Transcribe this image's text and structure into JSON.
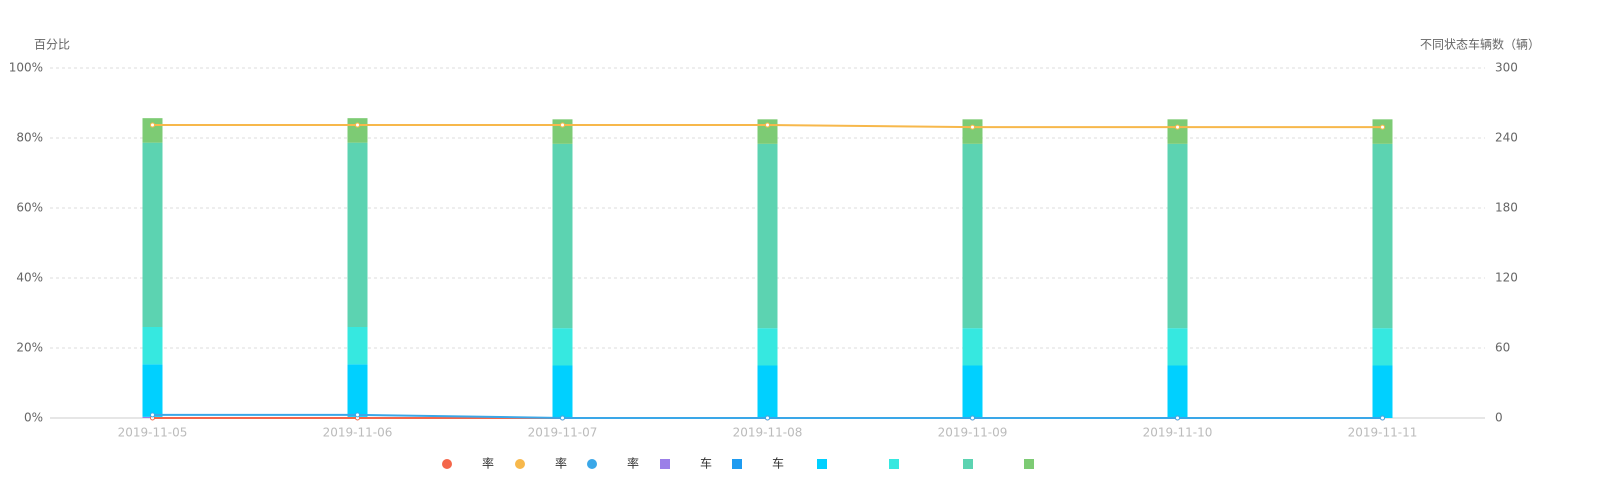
{
  "chart_data": {
    "type": "bar-line",
    "y_axis_title": "百分比",
    "y2_axis_title": "不同状态车辆数（辆）",
    "categories": [
      "2019-11-05",
      "2019-11-06",
      "2019-11-07",
      "2019-11-08",
      "2019-11-09",
      "2019-11-10",
      "2019-11-11"
    ],
    "ylim": [
      0,
      100
    ],
    "yticks": [
      {
        "value": 0,
        "label": "0%"
      },
      {
        "value": 20,
        "label": "20%"
      },
      {
        "value": 40,
        "label": "40%"
      },
      {
        "value": 60,
        "label": "60%"
      },
      {
        "value": 80,
        "label": "80%"
      },
      {
        "value": 100,
        "label": "100%"
      }
    ],
    "y2lim": [
      0,
      300
    ],
    "y2ticks": [
      0,
      60,
      120,
      180,
      240,
      300
    ],
    "grid": true,
    "series": [
      {
        "name": "率",
        "type": "line",
        "axis": "y",
        "color": "#f4664a",
        "values": [
          0,
          0,
          0,
          0,
          0,
          0,
          0
        ]
      },
      {
        "name": "率",
        "type": "line",
        "axis": "y",
        "color": "#f7b84b",
        "values": [
          83.7,
          83.7,
          83.7,
          83.7,
          83.1,
          83.1,
          83.1
        ]
      },
      {
        "name": "率",
        "type": "line",
        "axis": "y",
        "color": "#3aa7e8",
        "values": [
          0.9,
          0.9,
          0,
          0,
          0,
          0,
          0
        ]
      },
      {
        "name": "车",
        "type": "bar",
        "axis": "y2",
        "color": "#9b7fe8",
        "values": [
          1,
          1,
          0,
          0,
          0,
          0,
          0
        ]
      },
      {
        "name": "车",
        "type": "bar",
        "axis": "y2",
        "color": "#1e9bf0",
        "values": [
          0,
          0,
          0,
          0,
          0,
          0,
          0
        ]
      },
      {
        "name": null,
        "type": "bar",
        "axis": "y2",
        "color": "#00d0ff",
        "values": [
          45,
          45,
          45,
          45,
          45,
          45,
          45
        ]
      },
      {
        "name": null,
        "type": "bar",
        "axis": "y2",
        "color": "#36e8e0",
        "values": [
          32,
          32,
          32,
          32,
          32,
          32,
          32
        ]
      },
      {
        "name": null,
        "type": "bar",
        "axis": "y2",
        "color": "#5cd3b1",
        "values": [
          158,
          158,
          158,
          158,
          158,
          158,
          158
        ]
      },
      {
        "name": null,
        "type": "bar",
        "axis": "y2",
        "color": "#7dcb74",
        "values": [
          21,
          21,
          21,
          21,
          21,
          21,
          21
        ]
      }
    ]
  }
}
